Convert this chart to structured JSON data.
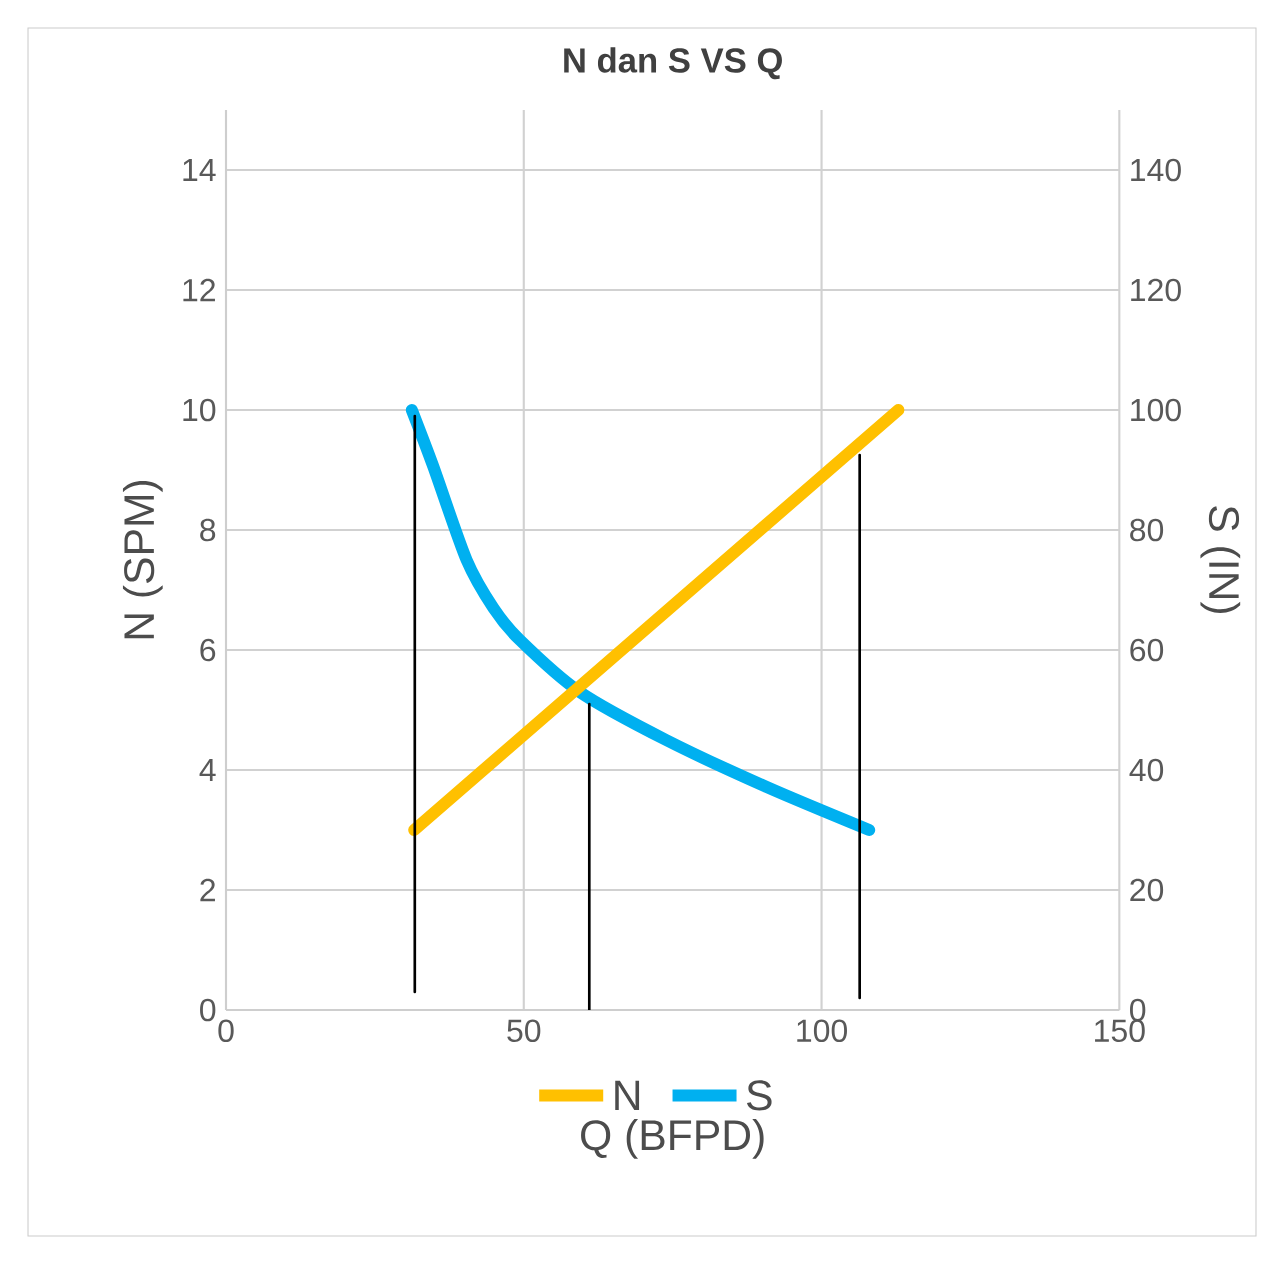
{
  "chart_data": {
    "type": "line",
    "title": "N dan S VS Q",
    "xlabel": "Q (BFPD)",
    "ylabel": "N (SPM)",
    "y2label": "S (IN)",
    "xlim": [
      0,
      150
    ],
    "xticks": [
      0,
      50,
      100,
      150
    ],
    "ylim": [
      0,
      15
    ],
    "yticks": [
      0,
      2,
      4,
      6,
      8,
      10,
      12,
      14
    ],
    "y2lim": [
      0,
      150
    ],
    "y2ticks": [
      0,
      20,
      40,
      60,
      80,
      100,
      120,
      140
    ],
    "grid": true,
    "legend": "bottom",
    "series": [
      {
        "name": "N",
        "color": "#ffc000",
        "x": [
          31.6,
          112.9
        ],
        "values": [
          3.0,
          10.0
        ]
      },
      {
        "name": "S",
        "color": "#00b0f0",
        "axis": "y2",
        "x": [
          31.2,
          34.8,
          40.4,
          44.9,
          49.3,
          59.4,
          73.9,
          90.7,
          108
        ],
        "values": [
          100,
          90.6,
          75,
          67,
          61.7,
          53,
          45,
          37.2,
          30
        ]
      },
      {
        "color": "#000000",
        "x": [
          31.7,
          31.7
        ],
        "values": [
          0.3,
          9.9
        ]
      },
      {
        "color": "#000000",
        "x": [
          61,
          61
        ],
        "values": [
          0,
          5.1
        ]
      },
      {
        "color": "#000000",
        "x": [
          106.4,
          106.4
        ],
        "values": [
          0.2,
          9.25
        ]
      }
    ]
  }
}
